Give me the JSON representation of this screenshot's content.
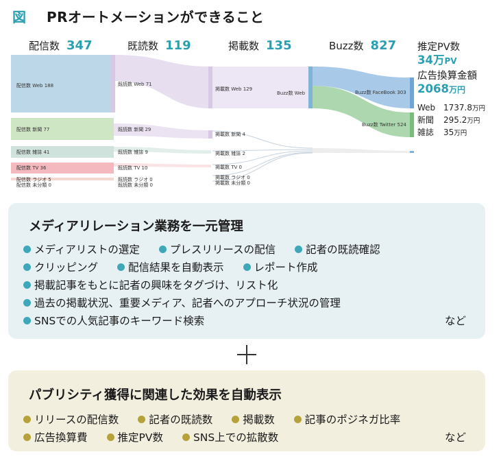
{
  "header": {
    "fig_mark": "図",
    "title": "PRオートメーションができること"
  },
  "stages": [
    {
      "label": "配信数",
      "value": "347"
    },
    {
      "label": "既読数",
      "value": "119"
    },
    {
      "label": "掲載数",
      "value": "135"
    },
    {
      "label": "Buzz数",
      "value": "827"
    }
  ],
  "sankey": {
    "colors": {
      "web": "#bcd7e8",
      "news": "#cfe6c4",
      "mag": "#cfe3dc",
      "tv": "#f3b9bf",
      "radio": "#f6d6d0",
      "other": "#dcdcdc",
      "buzz": "#7fb3d8",
      "facebook": "#6ea5d8",
      "twitter": "#76be7a",
      "read": "#d7c8e6"
    },
    "col1": [
      {
        "label": "配信数 Web 188",
        "value": 188,
        "color": "web"
      },
      {
        "label": "配信数 新聞 77",
        "value": 77,
        "color": "news"
      },
      {
        "label": "配信数 雑誌 41",
        "value": 41,
        "color": "mag"
      },
      {
        "label": "配信数 TV 36",
        "value": 36,
        "color": "tv"
      },
      {
        "label": "配信数 ラジオ 5",
        "value": 5,
        "color": "radio"
      },
      {
        "label": "配信数 未分類 0",
        "value": 0,
        "color": "other"
      }
    ],
    "col2": [
      {
        "label": "既読数 Web 71",
        "value": 71,
        "color": "read"
      },
      {
        "label": "既読数 新聞 29",
        "value": 29,
        "color": "news"
      },
      {
        "label": "既読数 雑誌 9",
        "value": 9,
        "color": "mag"
      },
      {
        "label": "既読数 TV 10",
        "value": 10,
        "color": "tv"
      },
      {
        "label": "既読数 ラジオ 0",
        "value": 0,
        "color": "radio"
      },
      {
        "label": "既読数 未分類 0",
        "value": 0,
        "color": "other"
      }
    ],
    "col3": [
      {
        "label": "掲載数 Web 129",
        "value": 129,
        "color": "read"
      },
      {
        "label": "掲載数 新聞 4",
        "value": 4,
        "color": "read"
      },
      {
        "label": "掲載数 雑誌 2",
        "value": 2,
        "color": "mag"
      },
      {
        "label": "掲載数 TV 0",
        "value": 0,
        "color": "tv"
      },
      {
        "label": "掲載数 ラジオ 0",
        "value": 0,
        "color": "radio"
      },
      {
        "label": "掲載数 未分類 0",
        "value": 0,
        "color": "other"
      }
    ],
    "col4": [
      {
        "label": "Buzz数 Web",
        "color": "buzz"
      }
    ],
    "col5": [
      {
        "label": "Buzz数 FaceBook 303",
        "value": 303,
        "color": "facebook"
      },
      {
        "label": "Buzz数 Twitter 524",
        "value": 524,
        "color": "twitter"
      }
    ]
  },
  "summary": {
    "pv_label": "推定PV数",
    "pv_value": "34万",
    "pv_unit": "PV",
    "ad_label": "広告換算金額",
    "ad_value": "2068",
    "ad_unit": "万円",
    "breakdown": [
      {
        "name": "Web",
        "value": "1737.8",
        "unit": "万円"
      },
      {
        "name": "新聞",
        "value": "295.2",
        "unit": "万円"
      },
      {
        "name": "雑誌",
        "value": "35",
        "unit": "万円"
      }
    ]
  },
  "box1": {
    "title": "メディアリレーション業務を一元管理",
    "rows": [
      [
        "メディアリストの選定",
        "プレスリリースの配信",
        "記者の既読確認"
      ],
      [
        "クリッピング",
        "配信結果を自動表示",
        "レポート作成"
      ],
      [
        "掲載記事をもとに記者の興味をタグづけ、リスト化"
      ],
      [
        "過去の掲載状況、重要メディア、記者へのアプローチ状況の管理"
      ],
      [
        "SNSでの人気記事のキーワード検索"
      ]
    ],
    "etc": "など"
  },
  "box2": {
    "title": "パブリシティ獲得に関連した効果を自動表示",
    "rows": [
      [
        "リリースの配信数",
        "記者の既読数",
        "掲載数",
        "記事のポジネガ比率"
      ],
      [
        "広告換算費",
        "推定PV数",
        "SNS上での拡散数"
      ]
    ],
    "etc": "など"
  }
}
